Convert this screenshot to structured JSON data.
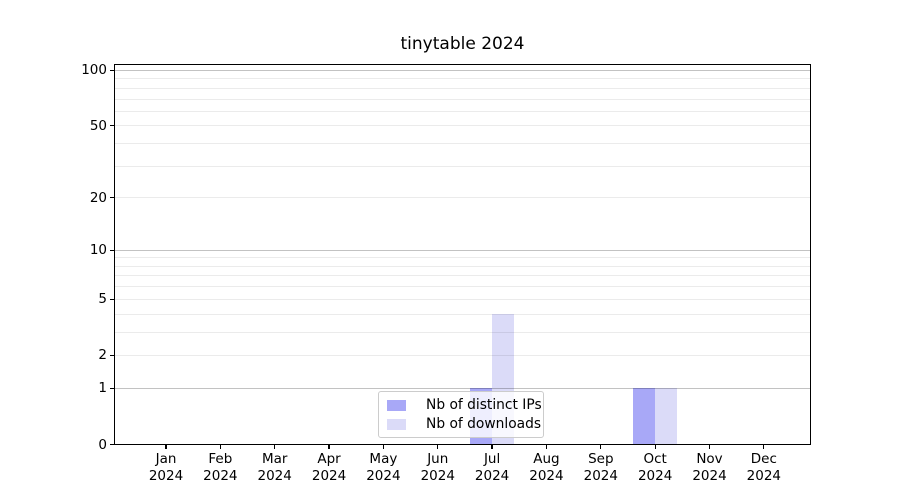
{
  "figure": {
    "title": "tinytable 2024",
    "background": "#ffffff"
  },
  "chart_data": {
    "type": "bar",
    "title": "tinytable 2024",
    "categories": [
      "Jan 2024",
      "Feb 2024",
      "Mar 2024",
      "Apr 2024",
      "May 2024",
      "Jun 2024",
      "Jul 2024",
      "Aug 2024",
      "Sep 2024",
      "Oct 2024",
      "Nov 2024",
      "Dec 2024"
    ],
    "x_tick_line1": [
      "Jan",
      "Feb",
      "Mar",
      "Apr",
      "May",
      "Jun",
      "Jul",
      "Aug",
      "Sep",
      "Oct",
      "Nov",
      "Dec"
    ],
    "x_tick_line2": "2024",
    "series": [
      {
        "name": "Nb of distinct IPs",
        "color": "#a8a8f7",
        "values": [
          0,
          0,
          0,
          0,
          0,
          0,
          1,
          0,
          0,
          1,
          0,
          0
        ]
      },
      {
        "name": "Nb of downloads",
        "color": "#dbdbf8",
        "values": [
          0,
          0,
          0,
          0,
          0,
          0,
          4,
          0,
          0,
          1,
          0,
          0
        ]
      }
    ],
    "yscale": "log1p",
    "ylabel": "",
    "xlabel": "",
    "y_tick_values": [
      0,
      1,
      2,
      5,
      10,
      20,
      50,
      100
    ],
    "y_major_gridlines": [
      1,
      10,
      100
    ],
    "y_minor_gridlines": [
      2,
      3,
      4,
      5,
      6,
      7,
      8,
      9,
      20,
      30,
      40,
      50,
      60,
      70,
      80,
      90
    ],
    "ylim": [
      0,
      107
    ],
    "grid": true,
    "legend_position": "lower center inside axes"
  },
  "colors": {
    "spine": "#000000",
    "minor_grid": "#ebebeb",
    "major_grid": "#c2c2c2",
    "legend_border": "#cccccc",
    "legend_background": "rgba(255,255,255,0.8)"
  }
}
